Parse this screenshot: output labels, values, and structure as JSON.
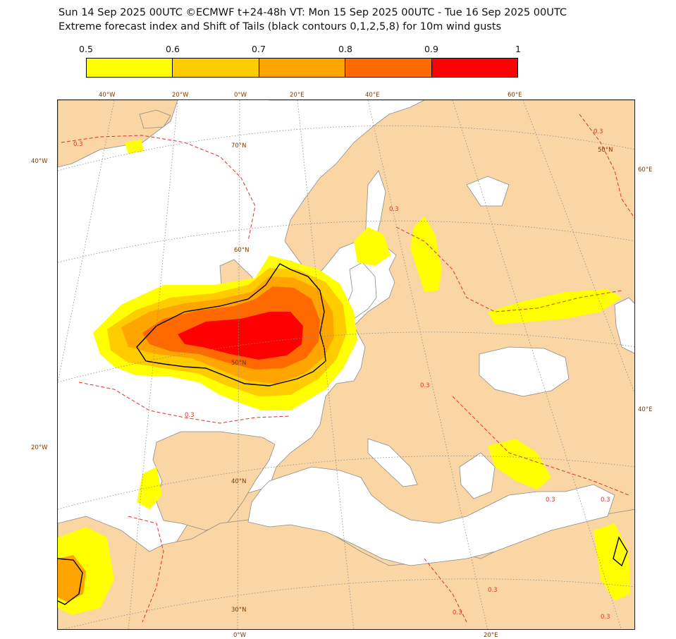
{
  "header": {
    "line1": "Sun 14 Sep 2025 00UTC ©ECMWF t+24-48h  VT: Mon 15 Sep 2025 00UTC - Tue 16 Sep 2025 00UTC",
    "line2": "Extreme forecast index and Shift of Tails (black contours 0,1,2,5,8) for 10m wind gusts"
  },
  "legend": {
    "ticks": [
      "0.5",
      "0.6",
      "0.7",
      "0.8",
      "0.9",
      "1"
    ],
    "colors": [
      "#ffff00",
      "#ffcc00",
      "#ffa500",
      "#ff6a00",
      "#ff0000"
    ]
  },
  "colors": {
    "land": "#f9d6a4",
    "sea": "#ffffff",
    "border": "#9a9a9a",
    "coast": "#8c8c8c",
    "graticule": "#8c8c8c",
    "efi_contour": "#e03030",
    "sot_contour": "#000000"
  },
  "map": {
    "top_lon_labels": [
      "40°W",
      "20°W",
      "0°W",
      "20°E",
      "40°E",
      "60°E"
    ],
    "bottom_lon_labels": [
      "0°W",
      "20°E"
    ],
    "left_labels": [
      "40°W",
      "20°W"
    ],
    "right_labels": [
      "60°E",
      "40°E"
    ],
    "lat_labels": [
      "70°N",
      "60°N",
      "50°N",
      "40°N",
      "30°N",
      "50°N"
    ],
    "contour_labels": [
      "0.3",
      "0.3",
      "0.3",
      "0.3",
      "0.3",
      "0.3",
      "0.3",
      "0.3",
      "0.3",
      "0.3"
    ]
  }
}
